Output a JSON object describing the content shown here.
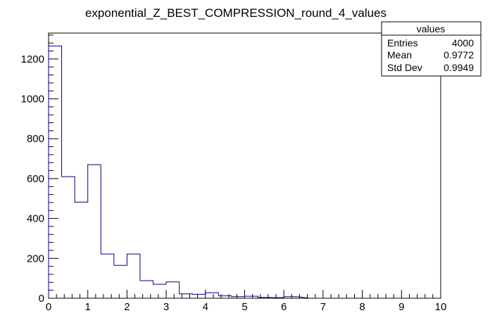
{
  "chart_data": {
    "type": "bar",
    "title": "exponential_Z_BEST_COMPRESSION_round_4_values",
    "xlabel": "",
    "ylabel": "",
    "xlim": [
      0,
      10
    ],
    "ylim": [
      0,
      1330
    ],
    "bin_edges": [
      0,
      0.333,
      0.667,
      1.0,
      1.333,
      1.667,
      2.0,
      2.333,
      2.667,
      3.0,
      3.333,
      3.667,
      4.0,
      4.333,
      4.667,
      5.0,
      5.333,
      5.667,
      6.0,
      6.333
    ],
    "values": [
      1265,
      610,
      482,
      670,
      222,
      165,
      222,
      88,
      70,
      82,
      22,
      20,
      28,
      12,
      8,
      10,
      4,
      3,
      8
    ],
    "x_ticks": [
      "0",
      "1",
      "2",
      "3",
      "4",
      "5",
      "6",
      "7",
      "8",
      "9",
      "10"
    ],
    "y_ticks": [
      "0",
      "200",
      "400",
      "600",
      "800",
      "1000",
      "1200"
    ],
    "line_color": "#000080",
    "grid": false
  },
  "stats_box": {
    "title": "values",
    "rows": [
      {
        "label": "Entries",
        "value": "4000"
      },
      {
        "label": "Mean",
        "value": "0.9772"
      },
      {
        "label": "Std Dev",
        "value": "0.9949"
      }
    ]
  }
}
